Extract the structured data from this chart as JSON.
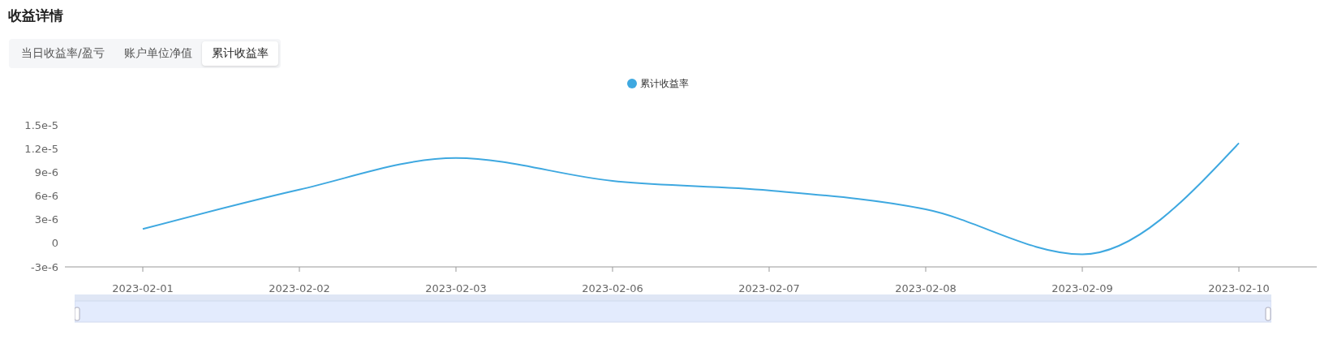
{
  "chart_data": {
    "type": "line",
    "title": "收益详情",
    "annotations": [
      "当日收益率/盈亏",
      "账户单位净值",
      "累计收益率"
    ],
    "categories": [
      "2023-02-01",
      "2023-02-02",
      "2023-02-03",
      "2023-02-06",
      "2023-02-07",
      "2023-02-08",
      "2023-02-09",
      "2023-02-10"
    ],
    "series": [
      {
        "name": "累计收益率",
        "color": "#3ea8e0",
        "values": [
          1.8e-06,
          6.8e-06,
          1.08e-05,
          7.9e-06,
          6.7e-06,
          4.3e-06,
          -1.4e-06,
          1.27e-05
        ]
      }
    ],
    "ylim": [
      -3e-06,
      1.5e-05
    ],
    "yticks": [
      {
        "value": -3e-06,
        "label": "-3e-6"
      },
      {
        "value": 0,
        "label": "0"
      },
      {
        "value": 3e-06,
        "label": "3e-6"
      },
      {
        "value": 6e-06,
        "label": "6e-6"
      },
      {
        "value": 9e-06,
        "label": "9e-6"
      },
      {
        "value": 1.2e-05,
        "label": "1.2e-5"
      },
      {
        "value": 1.5e-05,
        "label": "1.5e-5"
      }
    ],
    "grid": false,
    "legend": "top",
    "marker": "none",
    "line_style": "solid"
  }
}
